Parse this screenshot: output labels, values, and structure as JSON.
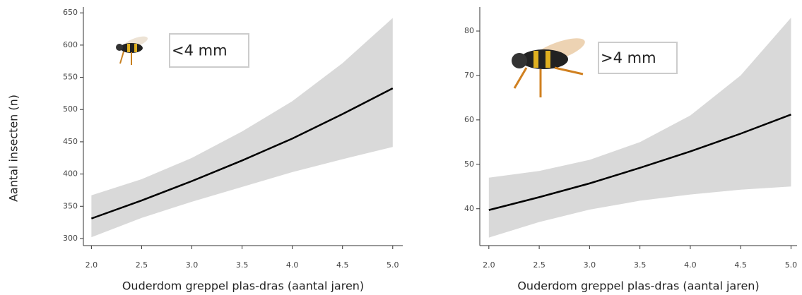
{
  "chart_data": [
    {
      "type": "line",
      "annotation": "<4 mm",
      "xlabel": "Ouderdom greppel plas-dras (aantal jaren)",
      "ylabel": "Aantal insecten (n)",
      "x": [
        2.0,
        2.5,
        3.0,
        3.5,
        4.0,
        4.5,
        5.0
      ],
      "values": [
        331,
        359,
        389,
        421,
        455,
        493,
        533
      ],
      "lower": [
        302,
        332,
        357,
        380,
        403,
        423,
        442
      ],
      "upper": [
        367,
        392,
        425,
        466,
        513,
        572,
        642
      ],
      "color": "#000000",
      "band_color": "#d9d9d9",
      "xlim": [
        1.92,
        5.1
      ],
      "ylim": [
        289,
        659
      ],
      "xticks": [
        {
          "value": 2,
          "label": "2.0"
        },
        2.5,
        {
          "value": 3,
          "label": "3.0"
        },
        3.5,
        {
          "value": 4,
          "label": "4.0"
        },
        4.5,
        {
          "value": 5,
          "label": "5.0"
        }
      ],
      "yticks": [
        300,
        350,
        400,
        450,
        500,
        550,
        600,
        650
      ]
    },
    {
      "type": "line",
      "annotation": ">4 mm",
      "xlabel": "Ouderdom greppel plas-dras (aantal jaren)",
      "x": [
        2.0,
        2.5,
        3.0,
        3.5,
        4.0,
        4.5,
        5.0
      ],
      "values": [
        39.7,
        42.6,
        45.7,
        49.2,
        52.9,
        56.9,
        61.2
      ],
      "lower": [
        33.5,
        37,
        39.8,
        41.8,
        43.2,
        44.3,
        45
      ],
      "upper": [
        47,
        48.5,
        51,
        55,
        61,
        70,
        83
      ],
      "color": "#000000",
      "band_color": "#d9d9d9",
      "xlim": [
        1.91,
        5.06
      ],
      "ylim": [
        31.7,
        85.4
      ],
      "xticks": [
        {
          "value": 2,
          "label": "2.0"
        },
        2.5,
        {
          "value": 3,
          "label": "3.0"
        },
        3.5,
        {
          "value": 4,
          "label": "4.0"
        },
        4.5,
        {
          "value": 5,
          "label": "5.0"
        }
      ],
      "yticks": [
        40,
        50,
        60,
        70,
        80
      ]
    }
  ]
}
